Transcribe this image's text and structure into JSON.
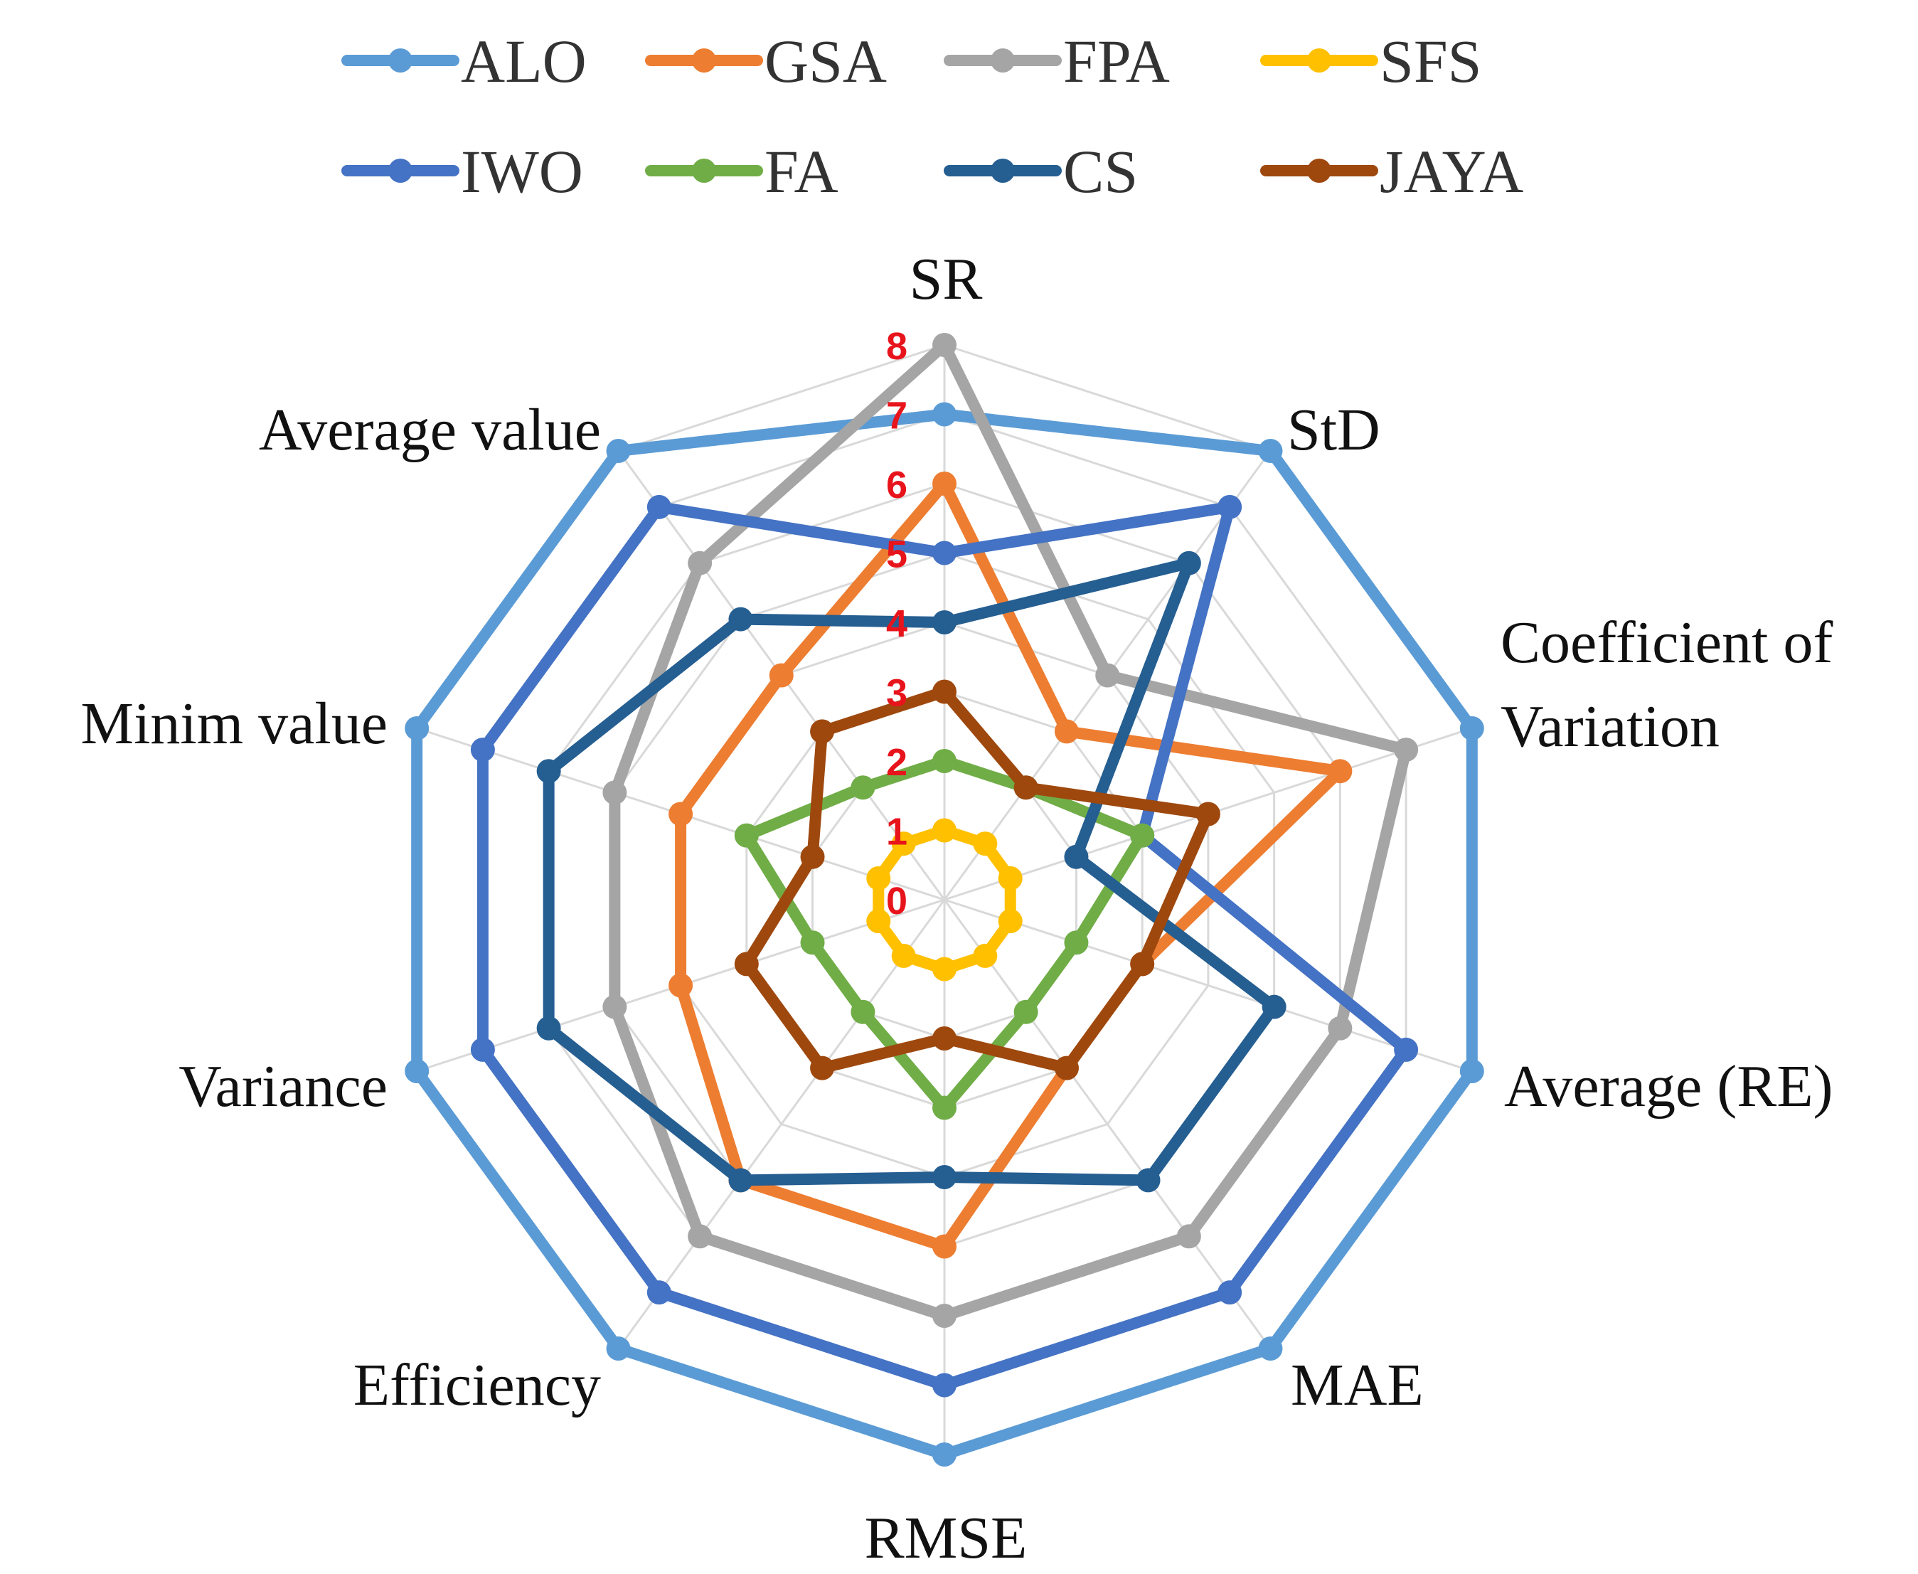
{
  "chart_data": {
    "type": "radar",
    "axes": [
      "SR",
      "StD",
      "Coefficient of Variation",
      "Average (RE)",
      "MAE",
      "RMSE",
      "Efficiency",
      "Variance",
      "Minim value",
      "Average value"
    ],
    "axis_label_lines": [
      [
        "SR"
      ],
      [
        "StD"
      ],
      [
        "Coefficient of",
        "Variation"
      ],
      [
        "Average (RE)"
      ],
      [
        "MAE"
      ],
      [
        "RMSE"
      ],
      [
        "Efficiency"
      ],
      [
        "Variance"
      ],
      [
        "Minim value"
      ],
      [
        "Average value"
      ]
    ],
    "radial_ticks": [
      "0",
      "1",
      "2",
      "3",
      "4",
      "5",
      "6",
      "7",
      "8"
    ],
    "rmin": 0,
    "rmax": 8,
    "series": [
      {
        "name": "ALO",
        "color": "#5b9bd5",
        "values": [
          7,
          8,
          8,
          8,
          8,
          8,
          8,
          8,
          8,
          8
        ]
      },
      {
        "name": "GSA",
        "color": "#ed7d31",
        "values": [
          6,
          3,
          6,
          3,
          3,
          5,
          5,
          4,
          4,
          4
        ]
      },
      {
        "name": "FPA",
        "color": "#a5a5a5",
        "values": [
          8,
          4,
          7,
          6,
          6,
          6,
          6,
          5,
          5,
          6
        ]
      },
      {
        "name": "SFS",
        "color": "#ffc000",
        "values": [
          1,
          1,
          1,
          1,
          1,
          1,
          1,
          1,
          1,
          1
        ]
      },
      {
        "name": "IWO",
        "color": "#4472c4",
        "values": [
          5,
          7,
          3,
          7,
          7,
          7,
          7,
          7,
          7,
          7
        ]
      },
      {
        "name": "FA",
        "color": "#70ad47",
        "values": [
          2,
          2,
          3,
          2,
          2,
          3,
          2,
          2,
          3,
          2
        ]
      },
      {
        "name": "CS",
        "color": "#255e91",
        "values": [
          4,
          6,
          2,
          5,
          5,
          4,
          5,
          6,
          6,
          5
        ]
      },
      {
        "name": "JAYA",
        "color": "#9e480e",
        "values": [
          3,
          2,
          4,
          3,
          3,
          2,
          3,
          3,
          2,
          3
        ]
      }
    ],
    "legend_position": "top"
  }
}
